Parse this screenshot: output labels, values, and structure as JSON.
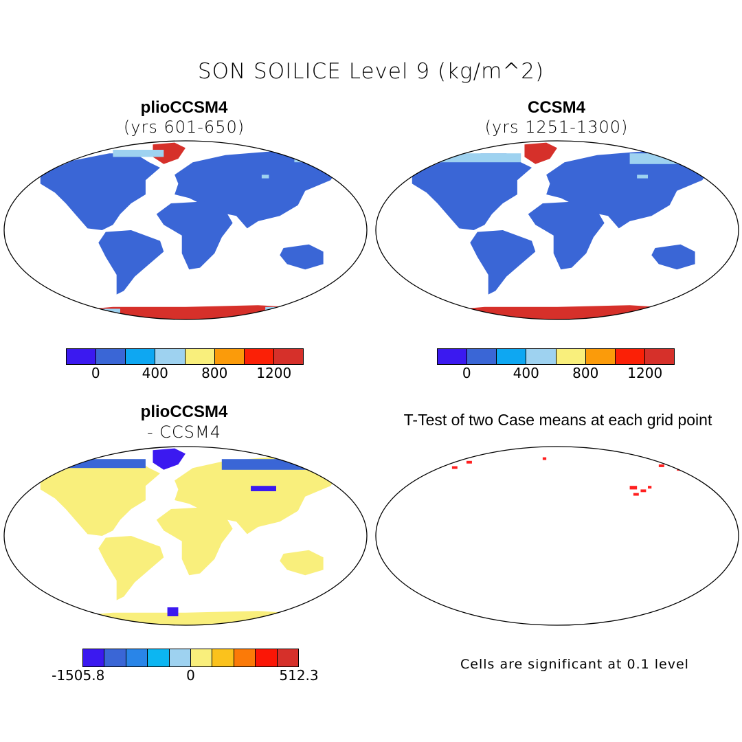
{
  "title": "SON SOILICE Level 9 (kg/m^2)",
  "panels": {
    "top_left": {
      "name": "plioCCSM4",
      "subtitle": "(yrs 601-650)"
    },
    "top_right": {
      "name": "CCSM4",
      "subtitle": "(yrs 1251-1300)"
    },
    "bottom_left": {
      "name": "plioCCSM4",
      "subtitle": "- CCSM4"
    },
    "bottom_right": {
      "name": "T-Test of two Case means at each grid point",
      "note": "Cells are significant at 0.1 level"
    }
  },
  "colorbar_abs": {
    "colors": [
      "#3b19f0",
      "#3a66d6",
      "#0ea7f2",
      "#9ed2f0",
      "#f9ef7c",
      "#fb9b0a",
      "#fb2006",
      "#d6302a"
    ],
    "ticks": [
      "0",
      "400",
      "800",
      "1200"
    ]
  },
  "colorbar_diff": {
    "colors": [
      "#3b19f0",
      "#3a66d6",
      "#2985e8",
      "#0cb6f2",
      "#9ed2f0",
      "#f9ef7c",
      "#fbc21c",
      "#fb7a08",
      "#fb1606",
      "#d6302a"
    ],
    "ticks": [
      "-1505.8",
      "0",
      "512.3"
    ]
  },
  "colors": {
    "land_blue": "#3a66d6",
    "ice_red": "#d6302a",
    "light_blue": "#9ed2f0",
    "diff_yellow": "#f9ef7c",
    "diff_purple": "#3b19f0",
    "signif_red": "#ff1f1f"
  }
}
